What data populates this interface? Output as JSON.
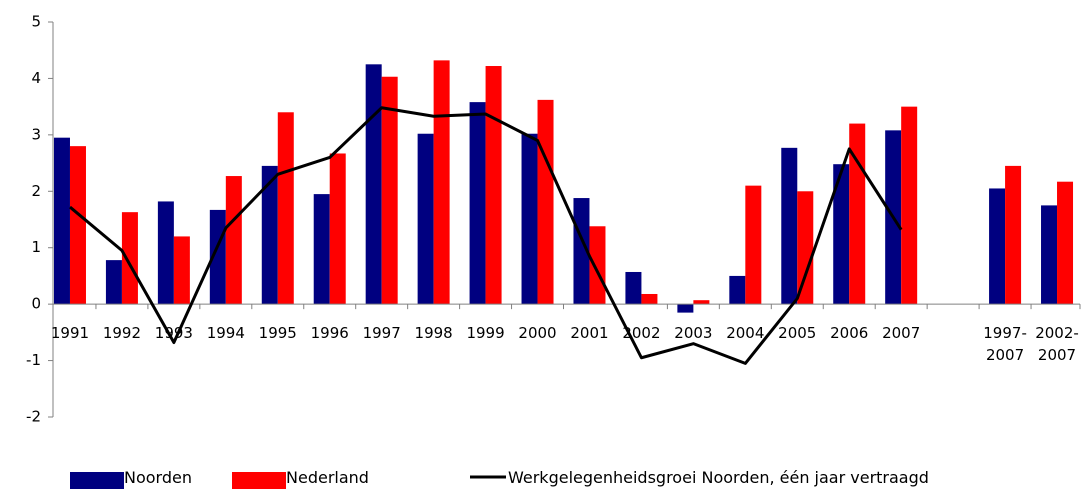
{
  "chart_data": {
    "type": "bar",
    "categories": [
      "1991",
      "1992",
      "1993",
      "1994",
      "1995",
      "1996",
      "1997",
      "1998",
      "1999",
      "2000",
      "2001",
      "2002",
      "2003",
      "2004",
      "2005",
      "2006",
      "2007",
      null,
      "1997-2007",
      "2002-2007"
    ],
    "series": [
      {
        "name": "Noorden",
        "color": "#000080",
        "type": "bar",
        "values": [
          2.95,
          0.78,
          1.82,
          1.67,
          2.45,
          1.95,
          4.25,
          3.02,
          3.58,
          3.02,
          1.88,
          0.57,
          -0.15,
          0.5,
          2.77,
          2.48,
          3.08,
          null,
          2.05,
          1.75
        ]
      },
      {
        "name": "Nederland",
        "color": "#ff0000",
        "type": "bar",
        "values": [
          2.8,
          1.63,
          1.2,
          2.27,
          3.4,
          2.67,
          4.03,
          4.32,
          4.22,
          3.62,
          1.38,
          0.18,
          0.07,
          2.1,
          2.0,
          3.2,
          3.5,
          null,
          2.45,
          2.17
        ]
      },
      {
        "name": "Werkgelegenheidsgroei Noorden, één jaar vertraagd",
        "color": "#000000",
        "type": "line",
        "values": [
          1.72,
          0.95,
          -0.68,
          1.35,
          2.3,
          2.6,
          3.48,
          3.33,
          3.37,
          2.9,
          0.85,
          -0.95,
          -0.7,
          -1.05,
          0.1,
          2.75,
          1.32,
          null,
          null,
          null
        ]
      }
    ],
    "ylim": [
      -2,
      5
    ],
    "yticks": [
      -2,
      -1,
      0,
      1,
      2,
      3,
      4,
      5
    ],
    "grid": false,
    "legend": "bottom"
  }
}
